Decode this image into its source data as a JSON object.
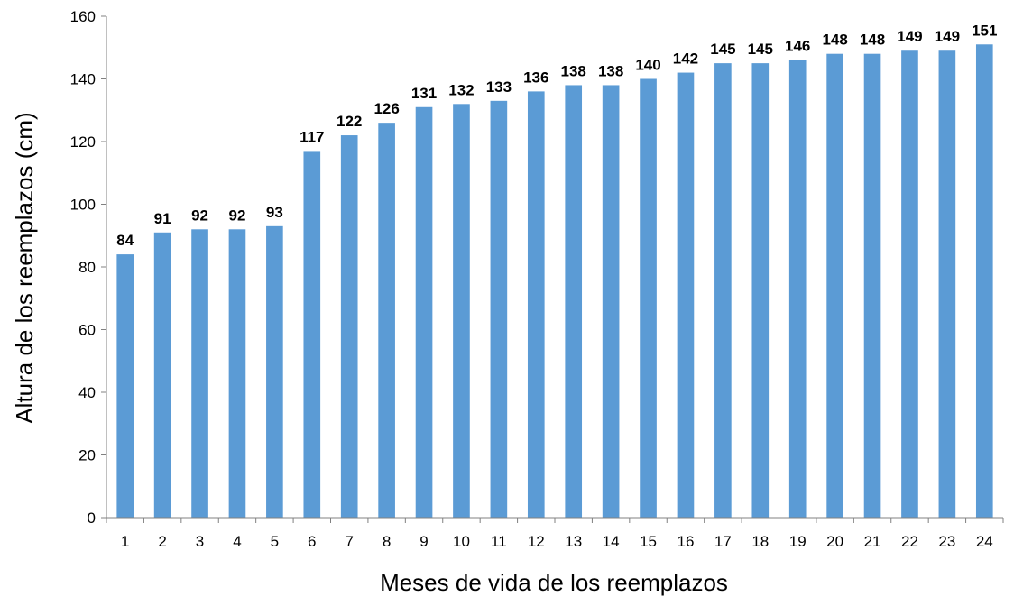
{
  "chart_data": {
    "type": "bar",
    "title": "",
    "xlabel": "Meses de vida de los reemplazos",
    "ylabel": "Altura de los reemplazos  (cm)",
    "categories": [
      "1",
      "2",
      "3",
      "4",
      "5",
      "6",
      "7",
      "8",
      "9",
      "10",
      "11",
      "12",
      "13",
      "14",
      "15",
      "16",
      "17",
      "18",
      "19",
      "20",
      "21",
      "22",
      "23",
      "24"
    ],
    "values": [
      84,
      91,
      92,
      92,
      93,
      117,
      122,
      126,
      131,
      132,
      133,
      136,
      138,
      138,
      140,
      142,
      145,
      145,
      146,
      148,
      148,
      149,
      149,
      151
    ],
    "ylim": [
      0,
      160
    ],
    "yticks": [
      0,
      20,
      40,
      60,
      80,
      100,
      120,
      140,
      160
    ],
    "data_labels": true,
    "grid": false,
    "legend": "none",
    "bar_color": "#5B9BD5"
  }
}
